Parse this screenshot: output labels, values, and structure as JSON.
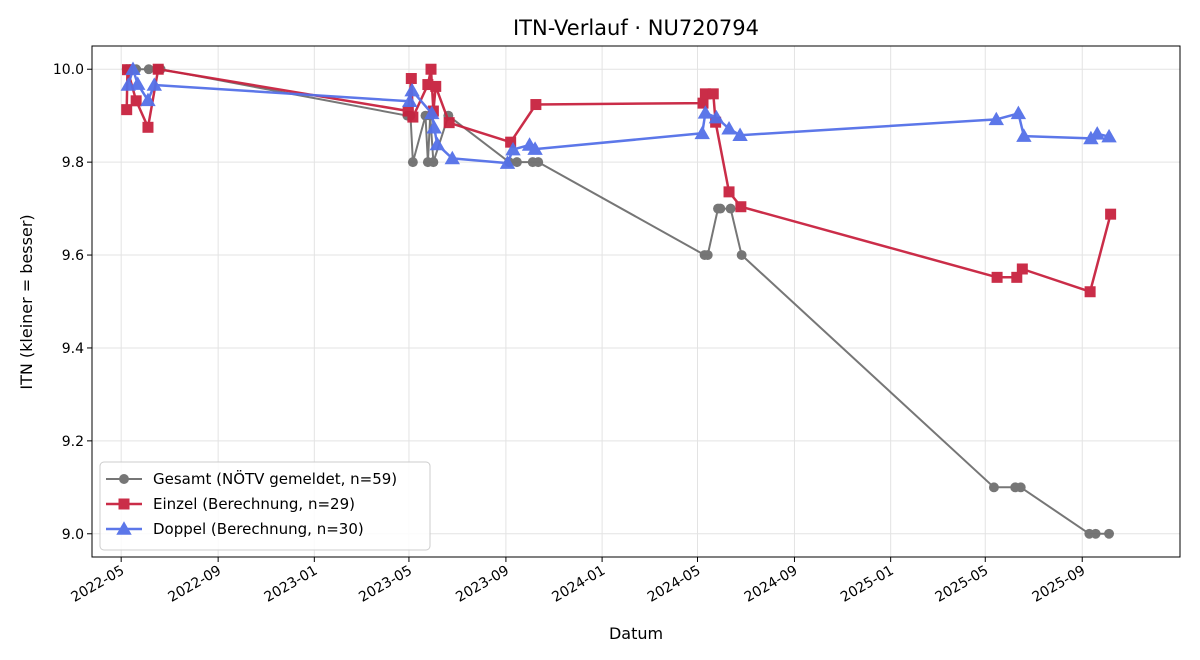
{
  "chart_data": {
    "type": "line",
    "title": "ITN-Verlauf · NU720794",
    "xlabel": "Datum",
    "ylabel": "ITN  (kleiner = besser)",
    "x_axis": "date",
    "xlim": [
      "2022-03-25",
      "2026-01-03"
    ],
    "ylim": [
      8.95,
      10.05
    ],
    "yticks": [
      9.0,
      9.2,
      9.4,
      9.6,
      9.8,
      10.0
    ],
    "ytick_labels": [
      "9.0",
      "9.2",
      "9.4",
      "9.6",
      "9.8",
      "10.0"
    ],
    "xticks": [
      "2022-05-01",
      "2022-09-01",
      "2023-01-01",
      "2023-05-01",
      "2023-09-01",
      "2024-01-01",
      "2024-05-01",
      "2024-09-01",
      "2025-01-01",
      "2025-05-01",
      "2025-09-01"
    ],
    "xtick_labels": [
      "2022-05",
      "2022-09",
      "2023-01",
      "2023-05",
      "2023-09",
      "2024-01",
      "2024-05",
      "2024-09",
      "2025-01",
      "2025-05",
      "2025-09"
    ],
    "grid": true,
    "legend_position": "lower-left",
    "series": [
      {
        "name": "Gesamt (NÖTV gemeldet, n=59)",
        "color": "#555555",
        "marker": "circle",
        "points": [
          [
            "2022-05-08",
            10.0
          ],
          [
            "2022-05-12",
            10.0
          ],
          [
            "2022-05-16",
            10.0
          ],
          [
            "2022-05-20",
            10.0
          ],
          [
            "2022-06-05",
            10.0
          ],
          [
            "2022-06-15",
            10.0
          ],
          [
            "2022-06-20",
            10.0
          ],
          [
            "2023-04-29",
            9.9
          ],
          [
            "2023-05-03",
            9.9
          ],
          [
            "2023-05-06",
            9.8
          ],
          [
            "2023-05-22",
            9.9
          ],
          [
            "2023-05-25",
            9.8
          ],
          [
            "2023-05-28",
            9.9
          ],
          [
            "2023-06-01",
            9.8
          ],
          [
            "2023-06-20",
            9.9
          ],
          [
            "2023-09-05",
            9.8
          ],
          [
            "2023-09-15",
            9.8
          ],
          [
            "2023-10-05",
            9.8
          ],
          [
            "2023-10-12",
            9.8
          ],
          [
            "2024-05-10",
            9.6
          ],
          [
            "2024-05-14",
            9.6
          ],
          [
            "2024-05-27",
            9.7
          ],
          [
            "2024-05-30",
            9.7
          ],
          [
            "2024-06-12",
            9.7
          ],
          [
            "2024-06-26",
            9.6
          ],
          [
            "2025-05-12",
            9.1
          ],
          [
            "2025-06-08",
            9.1
          ],
          [
            "2025-06-15",
            9.1
          ],
          [
            "2025-09-10",
            9.0
          ],
          [
            "2025-09-18",
            9.0
          ],
          [
            "2025-10-05",
            9.0
          ]
        ]
      },
      {
        "name": "Einzel (Berechnung, n=29)",
        "color": "#c8223f",
        "marker": "square",
        "points": [
          [
            "2022-05-08",
            9.913
          ],
          [
            "2022-05-09",
            9.999
          ],
          [
            "2022-05-20",
            9.932
          ],
          [
            "2022-06-04",
            9.875
          ],
          [
            "2022-06-17",
            10.0
          ],
          [
            "2023-04-30",
            9.91
          ],
          [
            "2023-05-04",
            9.98
          ],
          [
            "2023-05-06",
            9.897
          ],
          [
            "2023-05-25",
            9.967
          ],
          [
            "2023-05-29",
            10.0
          ],
          [
            "2023-06-01",
            9.91
          ],
          [
            "2023-06-04",
            9.963
          ],
          [
            "2023-06-21",
            9.885
          ],
          [
            "2023-09-07",
            9.843
          ],
          [
            "2023-10-09",
            9.924
          ],
          [
            "2024-05-08",
            9.927
          ],
          [
            "2024-05-11",
            9.947
          ],
          [
            "2024-05-21",
            9.947
          ],
          [
            "2024-05-24",
            9.886
          ],
          [
            "2024-06-10",
            9.736
          ],
          [
            "2024-06-25",
            9.704
          ],
          [
            "2025-05-16",
            9.552
          ],
          [
            "2025-06-10",
            9.552
          ],
          [
            "2025-06-17",
            9.57
          ],
          [
            "2025-09-11",
            9.521
          ],
          [
            "2025-10-07",
            9.688
          ]
        ]
      },
      {
        "name": "Doppel (Berechnung, n=30)",
        "color": "#5470e8",
        "marker": "triangle",
        "points": [
          [
            "2022-05-10",
            9.966
          ],
          [
            "2022-05-16",
            10.0
          ],
          [
            "2022-05-22",
            9.968
          ],
          [
            "2022-06-04",
            9.933
          ],
          [
            "2022-06-12",
            9.966
          ],
          [
            "2023-05-02",
            9.931
          ],
          [
            "2023-05-05",
            9.954
          ],
          [
            "2023-05-30",
            9.905
          ],
          [
            "2023-06-02",
            9.874
          ],
          [
            "2023-06-06",
            9.838
          ],
          [
            "2023-06-25",
            9.808
          ],
          [
            "2023-09-03",
            9.798
          ],
          [
            "2023-09-10",
            9.827
          ],
          [
            "2023-10-01",
            9.837
          ],
          [
            "2023-10-08",
            9.828
          ],
          [
            "2024-05-07",
            9.862
          ],
          [
            "2024-05-11",
            9.906
          ],
          [
            "2024-05-25",
            9.896
          ],
          [
            "2024-06-10",
            9.872
          ],
          [
            "2024-06-24",
            9.858
          ],
          [
            "2025-05-15",
            9.892
          ],
          [
            "2025-06-12",
            9.905
          ],
          [
            "2025-06-19",
            9.856
          ],
          [
            "2025-09-12",
            9.851
          ],
          [
            "2025-09-20",
            9.861
          ],
          [
            "2025-10-05",
            9.855
          ]
        ]
      }
    ]
  }
}
